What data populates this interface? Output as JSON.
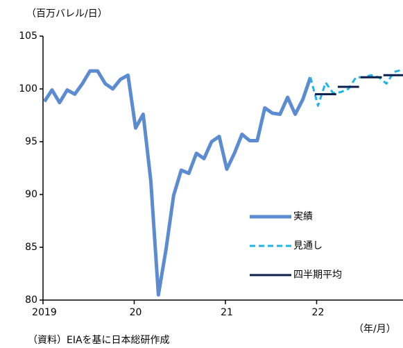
{
  "chart_data": {
    "type": "line",
    "y_label": "（百万バレル/日）",
    "x_label": "（年/月）",
    "source": "（資料）EIAを基に日本総研作成",
    "categories": [
      "2019",
      null,
      null,
      null,
      null,
      null,
      null,
      null,
      null,
      null,
      null,
      null,
      "20",
      null,
      null,
      null,
      null,
      null,
      null,
      null,
      null,
      null,
      null,
      null,
      "21",
      null,
      null,
      null,
      null,
      null,
      null,
      null,
      null,
      null,
      null,
      null,
      "22",
      null,
      null,
      null,
      null,
      null,
      null,
      null,
      null,
      null,
      null,
      null
    ],
    "series": [
      {
        "name": "実績",
        "color": "#5b8bd0",
        "style": "solid",
        "width": 5,
        "values": [
          98.8,
          99.9,
          98.7,
          99.9,
          99.5,
          100.5,
          101.7,
          101.7,
          100.5,
          100.0,
          100.9,
          101.3,
          96.3,
          97.6,
          91.3,
          80.5,
          84.8,
          89.9,
          92.3,
          92.0,
          93.9,
          93.4,
          95.0,
          95.5,
          92.4,
          93.9,
          95.7,
          95.1,
          95.1,
          98.2,
          97.7,
          97.6,
          99.2,
          97.6,
          99.0,
          101.1,
          null,
          null,
          null,
          null,
          null,
          null,
          null,
          null,
          null,
          null,
          null,
          null
        ]
      },
      {
        "name": "見通し",
        "color": "#1fb4e6",
        "style": "dashed",
        "width": 3,
        "values": [
          null,
          null,
          null,
          null,
          null,
          null,
          null,
          null,
          null,
          null,
          null,
          null,
          null,
          null,
          null,
          null,
          null,
          null,
          null,
          null,
          null,
          null,
          null,
          null,
          null,
          null,
          null,
          null,
          null,
          null,
          null,
          null,
          null,
          null,
          null,
          101.1,
          98.4,
          100.6,
          99.6,
          99.7,
          100.0,
          101.1,
          101.1,
          101.3,
          101.1,
          100.5,
          101.6,
          101.8
        ]
      },
      {
        "name": "四半期平均",
        "color": "#0b1f4d",
        "style": "step",
        "width": 3,
        "values": [
          null,
          null,
          null,
          null,
          null,
          null,
          null,
          null,
          null,
          null,
          null,
          null,
          null,
          null,
          null,
          null,
          null,
          null,
          null,
          null,
          null,
          null,
          null,
          null,
          null,
          null,
          null,
          null,
          null,
          null,
          null,
          null,
          null,
          null,
          null,
          null,
          99.5,
          99.5,
          99.5,
          100.2,
          100.2,
          100.2,
          101.1,
          101.1,
          101.1,
          101.3,
          101.3,
          101.3
        ]
      }
    ],
    "ylim": [
      80,
      105
    ],
    "yticks": [
      80,
      85,
      90,
      95,
      100,
      105
    ],
    "legend": "lower right",
    "grid": false
  }
}
